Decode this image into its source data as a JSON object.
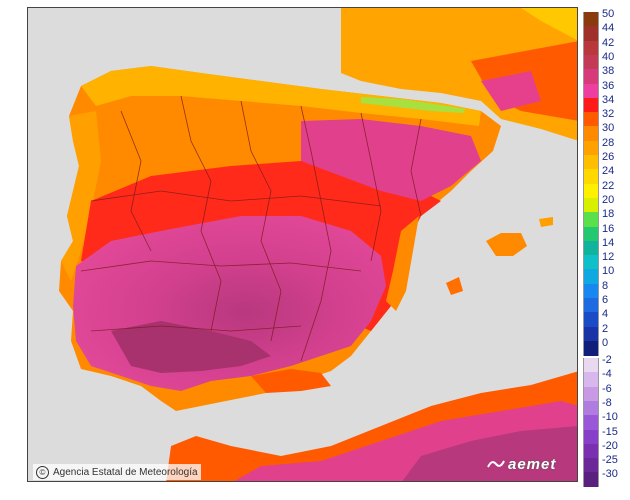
{
  "credit": {
    "text": "Agencia Estatal de Meteorología",
    "icon": "copyright-icon"
  },
  "brand": {
    "text": "aemet",
    "icon": "aemet-logo-icon"
  },
  "legend": {
    "warm": [
      {
        "label": "50",
        "color": "#8b3a0e"
      },
      {
        "label": "44",
        "color": "#a0302a"
      },
      {
        "label": "42",
        "color": "#b8383c"
      },
      {
        "label": "40",
        "color": "#c23a55"
      },
      {
        "label": "38",
        "color": "#d63a7a"
      },
      {
        "label": "36",
        "color": "#ec3fa0"
      },
      {
        "label": "34",
        "color": "#ff1a1a"
      },
      {
        "label": "32",
        "color": "#ff5a00"
      },
      {
        "label": "30",
        "color": "#ff8a00"
      },
      {
        "label": "28",
        "color": "#ffa200"
      },
      {
        "label": "26",
        "color": "#ffbe00"
      },
      {
        "label": "24",
        "color": "#ffd800"
      },
      {
        "label": "22",
        "color": "#fff000"
      },
      {
        "label": "20",
        "color": "#d8f000"
      },
      {
        "label": "18",
        "color": "#5ae04a"
      },
      {
        "label": "16",
        "color": "#24c870"
      },
      {
        "label": "14",
        "color": "#10b49c"
      },
      {
        "label": "12",
        "color": "#10c0c8"
      },
      {
        "label": "10",
        "color": "#10a8e0"
      },
      {
        "label": "8",
        "color": "#1888f0"
      },
      {
        "label": "6",
        "color": "#1e6ae0"
      },
      {
        "label": "4",
        "color": "#1a4cc8"
      },
      {
        "label": "2",
        "color": "#1a34a8"
      },
      {
        "label": "0",
        "color": "#10207a"
      }
    ],
    "cold": [
      {
        "label": "-2",
        "color": "#e8d8f0"
      },
      {
        "label": "-4",
        "color": "#d8b8ec"
      },
      {
        "label": "-6",
        "color": "#c89ae6"
      },
      {
        "label": "-8",
        "color": "#b07ce0"
      },
      {
        "label": "-10",
        "color": "#9a58d8"
      },
      {
        "label": "-15",
        "color": "#8840c8"
      },
      {
        "label": "-20",
        "color": "#7a30b0"
      },
      {
        "label": "-25",
        "color": "#6a2898"
      },
      {
        "label": "-30",
        "color": "#5a2080"
      }
    ]
  }
}
